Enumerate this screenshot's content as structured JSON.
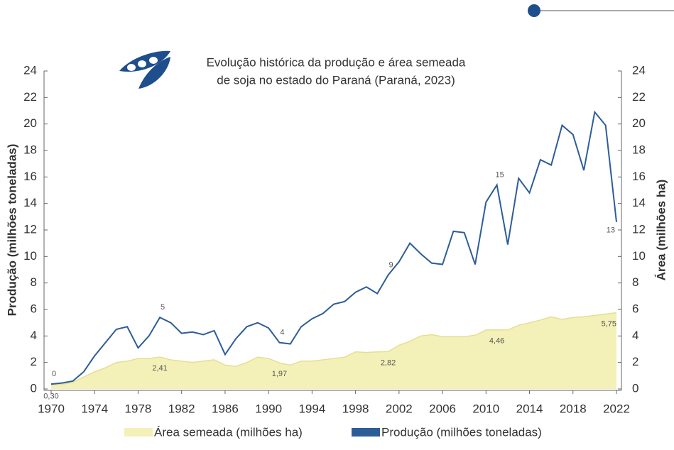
{
  "chart_data": {
    "type": "line-area",
    "title": [
      "Evolução histórica da produção e área semeada",
      "de soja no estado do Paraná (Paraná, 2023)"
    ],
    "ylabel": "Produção (milhões toneladas)",
    "y2label": "Área (milhões ha)",
    "x": [
      1970,
      1971,
      1972,
      1973,
      1974,
      1975,
      1976,
      1977,
      1978,
      1979,
      1980,
      1981,
      1982,
      1983,
      1984,
      1985,
      1986,
      1987,
      1988,
      1989,
      1990,
      1991,
      1992,
      1993,
      1994,
      1995,
      1996,
      1997,
      1998,
      1999,
      2000,
      2001,
      2002,
      2003,
      2004,
      2005,
      2006,
      2007,
      2008,
      2009,
      2010,
      2011,
      2012,
      2013,
      2014,
      2015,
      2016,
      2017,
      2018,
      2019,
      2020,
      2021,
      2022
    ],
    "xlim": [
      1970,
      2022
    ],
    "xticks": [
      1970,
      1974,
      1978,
      1982,
      1986,
      1990,
      1994,
      1998,
      2002,
      2006,
      2010,
      2014,
      2018,
      2022
    ],
    "ylim": [
      0,
      24
    ],
    "yticks": [
      0,
      2,
      4,
      6,
      8,
      10,
      12,
      14,
      16,
      18,
      20,
      22,
      24
    ],
    "y2lim": [
      0,
      24
    ],
    "y2ticks": [
      0,
      2,
      4,
      6,
      8,
      10,
      12,
      14,
      16,
      18,
      20,
      22,
      24
    ],
    "legend": "bottom",
    "series": [
      {
        "name": "Área semeada (milhões ha)",
        "kind": "area",
        "axis": "y2",
        "color": "#f3f1b8",
        "line_color": "#e4df95",
        "values": [
          0.3,
          0.35,
          0.5,
          0.9,
          1.3,
          1.6,
          2.0,
          2.1,
          2.3,
          2.3,
          2.41,
          2.2,
          2.1,
          2.0,
          2.1,
          2.2,
          1.8,
          1.7,
          2.0,
          2.4,
          2.3,
          1.97,
          1.8,
          2.1,
          2.1,
          2.2,
          2.3,
          2.4,
          2.8,
          2.75,
          2.8,
          2.82,
          3.3,
          3.6,
          4.0,
          4.1,
          3.95,
          3.95,
          3.95,
          4.05,
          4.45,
          4.46,
          4.45,
          4.8,
          5.0,
          5.2,
          5.45,
          5.25,
          5.4,
          5.45,
          5.55,
          5.65,
          5.75
        ],
        "value_labels": [
          "0,30",
          null,
          null,
          null,
          null,
          null,
          null,
          null,
          null,
          null,
          "2,41",
          null,
          null,
          null,
          null,
          null,
          null,
          null,
          null,
          null,
          null,
          "1,97",
          null,
          null,
          null,
          null,
          null,
          null,
          null,
          null,
          null,
          "2,82",
          null,
          null,
          null,
          null,
          null,
          null,
          null,
          null,
          null,
          "4,46",
          null,
          null,
          null,
          null,
          null,
          null,
          null,
          null,
          null,
          null,
          "5,75"
        ]
      },
      {
        "name": "Produção (milhões toneladas)",
        "kind": "line",
        "axis": "y",
        "color": "#2d5d97",
        "values": [
          0.37,
          0.45,
          0.6,
          1.3,
          2.5,
          3.5,
          4.5,
          4.7,
          3.1,
          4.0,
          5.4,
          5.0,
          4.2,
          4.3,
          4.1,
          4.4,
          2.6,
          3.8,
          4.7,
          5.0,
          4.6,
          3.5,
          3.4,
          4.7,
          5.3,
          5.7,
          6.4,
          6.6,
          7.3,
          7.7,
          7.2,
          8.6,
          9.6,
          11.0,
          10.2,
          9.5,
          9.4,
          11.9,
          11.8,
          9.4,
          14.1,
          15.4,
          10.9,
          15.9,
          14.8,
          17.3,
          16.9,
          19.9,
          19.2,
          16.5,
          20.9,
          19.9,
          12.6
        ],
        "value_labels": [
          "0",
          null,
          null,
          null,
          null,
          null,
          null,
          null,
          null,
          null,
          "5",
          null,
          null,
          null,
          null,
          null,
          null,
          null,
          null,
          null,
          null,
          "4",
          null,
          null,
          null,
          null,
          null,
          null,
          null,
          null,
          null,
          "9",
          null,
          null,
          null,
          null,
          null,
          null,
          null,
          null,
          null,
          "15",
          null,
          null,
          null,
          null,
          null,
          null,
          null,
          null,
          null,
          null,
          "13"
        ]
      }
    ]
  }
}
